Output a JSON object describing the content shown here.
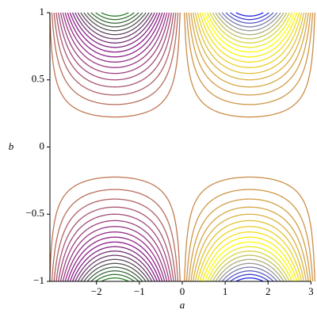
{
  "chart_data": {
    "type": "contour",
    "x_label": "a",
    "y_label": "b",
    "levels": [
      -0.95,
      -0.9,
      -0.85,
      -0.8,
      -0.75,
      -0.7,
      -0.65,
      -0.6,
      -0.55,
      -0.5,
      -0.45,
      -0.4,
      -0.35,
      -0.3,
      -0.25,
      -0.2,
      -0.15,
      -0.1,
      -0.05,
      0.05,
      0.1,
      0.15,
      0.2,
      0.25,
      0.3,
      0.35,
      0.4,
      0.45,
      0.5,
      0.55,
      0.6,
      0.65,
      0.7,
      0.75,
      0.8,
      0.85,
      0.9,
      0.95
    ],
    "colors": [
      "#1a8a1a",
      "#555555",
      "#8b1a8b",
      "#a04a7a",
      "#c8844a",
      "#d8b040",
      "#ffff00",
      "#999999",
      "#0000ff"
    ],
    "xlim": [
      -3.1416,
      3.1416
    ],
    "xticks": [
      {
        "value": -2,
        "label": "−2"
      },
      {
        "value": -1,
        "label": "−1"
      },
      0,
      1,
      2,
      3
    ],
    "ylim": [
      -1,
      1
    ],
    "yticks": [
      {
        "value": -1,
        "label": "−1"
      },
      {
        "value": -0.5,
        "label": "−0.5"
      },
      0,
      0.5,
      1
    ]
  }
}
